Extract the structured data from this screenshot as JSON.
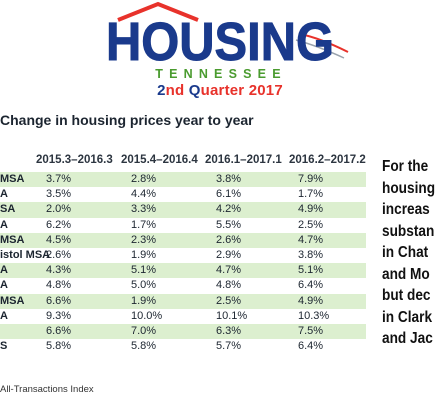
{
  "logo": {
    "word": "HOUSING",
    "subword": "TENNESSEE",
    "colors": {
      "blue": "#1a3a8c",
      "red": "#e8322b",
      "green": "#4a9b2f"
    }
  },
  "quarter": {
    "prefix_big": "2",
    "prefix_rest": "nd ",
    "q_big": "Q",
    "q_rest": "uarter 2017"
  },
  "section_title": "Change in housing prices year to year",
  "table": {
    "columns": [
      "2015.3–2016.3",
      "2015.4–2016.4",
      "2016.1–2017.1",
      "2016.2–2017.2"
    ],
    "rows": [
      {
        "label": " MSA",
        "values": [
          "3.7%",
          "2.8%",
          "3.8%",
          "7.9%"
        ]
      },
      {
        "label": "A",
        "values": [
          "3.5%",
          "4.4%",
          "6.1%",
          "1.7%"
        ]
      },
      {
        "label": "SA",
        "values": [
          "2.0%",
          "3.3%",
          "4.2%",
          "4.9%"
        ]
      },
      {
        "label": "A",
        "values": [
          "6.2%",
          "1.7%",
          "5.5%",
          "2.5%"
        ]
      },
      {
        "label": " MSA",
        "values": [
          "4.5%",
          "2.3%",
          "2.6%",
          "4.7%"
        ]
      },
      {
        "label": "istol MSA",
        "values": [
          "2.6%",
          "1.9%",
          "2.9%",
          "3.8%"
        ]
      },
      {
        "label": "A",
        "values": [
          "4.3%",
          "5.1%",
          "4.7%",
          "5.1%"
        ]
      },
      {
        "label": "A",
        "values": [
          "4.8%",
          "5.0%",
          "4.8%",
          "6.4%"
        ]
      },
      {
        "label": "MSA",
        "values": [
          "6.6%",
          "1.9%",
          "2.5%",
          "4.9%"
        ]
      },
      {
        "label": "A",
        "values": [
          "9.3%",
          "10.0%",
          "10.1%",
          "10.3%"
        ]
      },
      {
        "label": "",
        "values": [
          "6.6%",
          "7.0%",
          "6.3%",
          "7.5%"
        ]
      },
      {
        "label": "S",
        "values": [
          "5.8%",
          "5.8%",
          "5.7%",
          "6.4%"
        ]
      }
    ]
  },
  "footnote": "All-Transactions Index",
  "side_text": [
    "For the",
    "housing",
    "increas",
    "substan",
    "in Chat",
    "and Mo",
    "but dec",
    "in Clark",
    "and Jac"
  ]
}
